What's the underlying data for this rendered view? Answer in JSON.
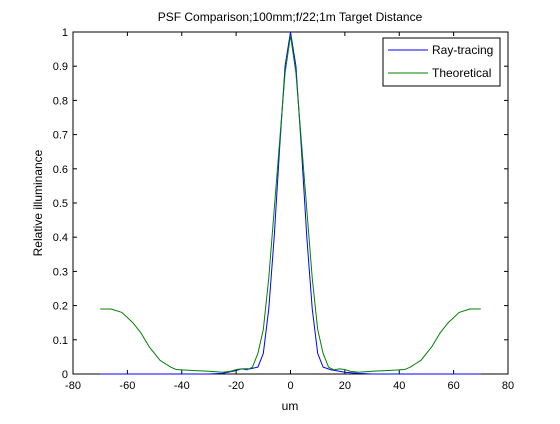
{
  "chart_data": {
    "type": "line",
    "title": "PSF Comparison;100mm;f/22;1m Target Distance",
    "xlabel": "um",
    "ylabel": "Relative illuminance",
    "xlim": [
      -80,
      80
    ],
    "ylim": [
      0,
      1
    ],
    "xticks": [
      -80,
      -60,
      -40,
      -20,
      0,
      20,
      40,
      60,
      80
    ],
    "yticks": [
      0,
      0.1,
      0.2,
      0.3,
      0.4,
      0.5,
      0.6,
      0.7,
      0.8,
      0.9,
      1
    ],
    "grid": false,
    "legend_position": "top-right",
    "series": [
      {
        "name": "Ray-tracing",
        "color": "#0000ff",
        "x": [
          -70,
          -60,
          -50,
          -40,
          -30,
          -25,
          -20,
          -18,
          -15,
          -12,
          -10,
          -8,
          -6,
          -4,
          -2,
          0,
          2,
          4,
          6,
          8,
          10,
          12,
          15,
          18,
          20,
          25,
          30,
          40,
          50,
          60,
          70
        ],
        "y": [
          0.0,
          0.0,
          0.0,
          0.0,
          0.0,
          0.002,
          0.01,
          0.015,
          0.015,
          0.02,
          0.06,
          0.19,
          0.4,
          0.66,
          0.9,
          1.0,
          0.9,
          0.66,
          0.4,
          0.19,
          0.06,
          0.02,
          0.012,
          0.008,
          0.005,
          0.002,
          0.0,
          0.0,
          0.0,
          0.0,
          0.0
        ]
      },
      {
        "name": "Theoretical",
        "color": "#008000",
        "x": [
          -70,
          -66,
          -62,
          -58,
          -55,
          -52,
          -50,
          -48,
          -46,
          -44,
          -42,
          -40,
          -35,
          -30,
          -25,
          -22,
          -20,
          -18,
          -16,
          -14,
          -12,
          -10,
          -8,
          -6,
          -4,
          -2,
          0,
          2,
          4,
          6,
          8,
          10,
          12,
          14,
          16,
          18,
          20,
          22,
          25,
          30,
          35,
          40,
          42,
          44,
          46,
          48,
          50,
          52,
          55,
          58,
          62,
          66,
          70
        ],
        "y": [
          0.19,
          0.19,
          0.18,
          0.15,
          0.12,
          0.08,
          0.06,
          0.04,
          0.03,
          0.02,
          0.013,
          0.012,
          0.01,
          0.008,
          0.005,
          0.008,
          0.013,
          0.015,
          0.012,
          0.02,
          0.06,
          0.13,
          0.28,
          0.48,
          0.68,
          0.88,
          0.99,
          0.88,
          0.68,
          0.48,
          0.28,
          0.13,
          0.06,
          0.02,
          0.012,
          0.015,
          0.013,
          0.008,
          0.005,
          0.008,
          0.01,
          0.012,
          0.013,
          0.02,
          0.03,
          0.04,
          0.06,
          0.08,
          0.12,
          0.15,
          0.18,
          0.19,
          0.19
        ]
      }
    ]
  }
}
